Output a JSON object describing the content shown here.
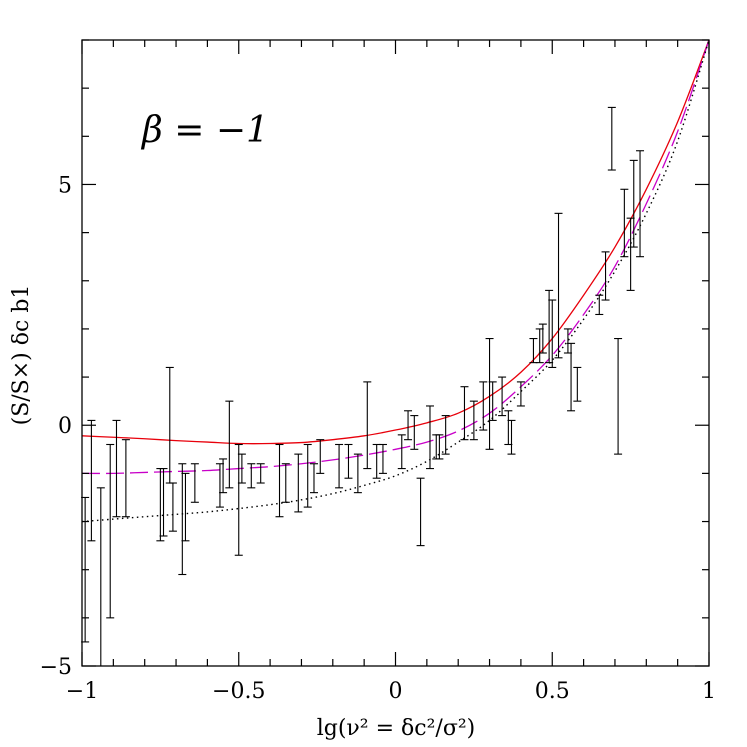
{
  "chart_data": {
    "type": "scatter",
    "title": "",
    "xlabel": "lg(ν² = δc²/σ²)",
    "ylabel": "(S/S×) δc b1",
    "annotation": "β = −1",
    "xlim": [
      -1,
      1
    ],
    "ylim": [
      -5,
      8
    ],
    "grid": false,
    "x_ticks": [
      {
        "value": -1,
        "label": "−1"
      },
      {
        "value": -0.5,
        "label": "−0.5"
      },
      {
        "value": 0,
        "label": "0"
      },
      {
        "value": 0.5,
        "label": "0.5"
      },
      {
        "value": 1,
        "label": "1"
      }
    ],
    "y_ticks": [
      {
        "value": -5,
        "label": "−5"
      },
      {
        "value": 0,
        "label": "0"
      },
      {
        "value": 5,
        "label": "5"
      }
    ],
    "x_minor_step": 0.1,
    "y_minor_step": 1,
    "errorbars": [
      {
        "x": -0.99,
        "low": -4.5,
        "high": -1.5
      },
      {
        "x": -0.97,
        "low": -2.4,
        "high": 0.1
      },
      {
        "x": -0.94,
        "low": -6.0,
        "high": -1.3
      },
      {
        "x": -0.91,
        "low": -4.0,
        "high": -0.4
      },
      {
        "x": -0.89,
        "low": -1.9,
        "high": 0.1
      },
      {
        "x": -0.86,
        "low": -1.9,
        "high": -0.3
      },
      {
        "x": -0.75,
        "low": -2.4,
        "high": -0.9
      },
      {
        "x": -0.74,
        "low": -2.3,
        "high": -0.9
      },
      {
        "x": -0.72,
        "low": -1.2,
        "high": 1.2
      },
      {
        "x": -0.71,
        "low": -2.2,
        "high": -1.2
      },
      {
        "x": -0.68,
        "low": -3.1,
        "high": -0.8
      },
      {
        "x": -0.67,
        "low": -2.4,
        "high": -1.0
      },
      {
        "x": -0.64,
        "low": -1.6,
        "high": -0.8
      },
      {
        "x": -0.56,
        "low": -1.7,
        "high": -0.8
      },
      {
        "x": -0.55,
        "low": -1.4,
        "high": -0.7
      },
      {
        "x": -0.53,
        "low": -1.3,
        "high": 0.5
      },
      {
        "x": -0.5,
        "low": -2.7,
        "high": -0.4
      },
      {
        "x": -0.49,
        "low": -1.2,
        "high": -0.6
      },
      {
        "x": -0.46,
        "low": -1.3,
        "high": -0.8
      },
      {
        "x": -0.43,
        "low": -1.2,
        "high": -0.8
      },
      {
        "x": -0.37,
        "low": -1.9,
        "high": -0.4
      },
      {
        "x": -0.35,
        "low": -1.6,
        "high": -0.8
      },
      {
        "x": -0.31,
        "low": -1.8,
        "high": -0.6
      },
      {
        "x": -0.28,
        "low": -1.7,
        "high": -0.4
      },
      {
        "x": -0.26,
        "low": -1.4,
        "high": -0.8
      },
      {
        "x": -0.24,
        "low": -1.0,
        "high": -0.3
      },
      {
        "x": -0.18,
        "low": -1.3,
        "high": -0.4
      },
      {
        "x": -0.15,
        "low": -1.1,
        "high": -0.4
      },
      {
        "x": -0.12,
        "low": -1.4,
        "high": -0.6
      },
      {
        "x": -0.09,
        "low": -0.9,
        "high": 0.9
      },
      {
        "x": -0.06,
        "low": -1.1,
        "high": -0.4
      },
      {
        "x": -0.04,
        "low": -1.0,
        "high": -0.4
      },
      {
        "x": 0.02,
        "low": -0.9,
        "high": -0.2
      },
      {
        "x": 0.04,
        "low": -0.3,
        "high": 0.3
      },
      {
        "x": 0.06,
        "low": -0.5,
        "high": 0.2
      },
      {
        "x": 0.08,
        "low": -2.5,
        "high": -1.1
      },
      {
        "x": 0.11,
        "low": -0.9,
        "high": 0.4
      },
      {
        "x": 0.13,
        "low": -0.7,
        "high": -0.2
      },
      {
        "x": 0.14,
        "low": -0.7,
        "high": -0.2
      },
      {
        "x": 0.16,
        "low": -0.6,
        "high": 0.2
      },
      {
        "x": 0.22,
        "low": -0.3,
        "high": 0.8
      },
      {
        "x": 0.25,
        "low": -0.3,
        "high": 0.5
      },
      {
        "x": 0.28,
        "low": -0.1,
        "high": 0.9
      },
      {
        "x": 0.3,
        "low": -0.5,
        "high": 1.8
      },
      {
        "x": 0.31,
        "low": 0.1,
        "high": 0.9
      },
      {
        "x": 0.34,
        "low": 0.2,
        "high": 1.0
      },
      {
        "x": 0.36,
        "low": -0.4,
        "high": 0.3
      },
      {
        "x": 0.37,
        "low": -0.6,
        "high": 0.1
      },
      {
        "x": 0.4,
        "low": 0.4,
        "high": 0.9
      },
      {
        "x": 0.44,
        "low": 1.3,
        "high": 1.8
      },
      {
        "x": 0.46,
        "low": 1.3,
        "high": 2.0
      },
      {
        "x": 0.47,
        "low": 1.5,
        "high": 2.1
      },
      {
        "x": 0.49,
        "low": 1.3,
        "high": 2.8
      },
      {
        "x": 0.5,
        "low": 1.2,
        "high": 2.6
      },
      {
        "x": 0.52,
        "low": 1.4,
        "high": 4.4
      },
      {
        "x": 0.55,
        "low": 1.5,
        "high": 2.0
      },
      {
        "x": 0.56,
        "low": 0.3,
        "high": 1.7
      },
      {
        "x": 0.58,
        "low": 0.5,
        "high": 1.2
      },
      {
        "x": 0.65,
        "low": 2.3,
        "high": 2.7
      },
      {
        "x": 0.67,
        "low": 2.6,
        "high": 3.6
      },
      {
        "x": 0.69,
        "low": 5.3,
        "high": 6.6
      },
      {
        "x": 0.71,
        "low": -0.6,
        "high": 1.8
      },
      {
        "x": 0.73,
        "low": 3.5,
        "high": 4.9
      },
      {
        "x": 0.75,
        "low": 2.8,
        "high": 4.3
      },
      {
        "x": 0.76,
        "low": 3.7,
        "high": 5.5
      },
      {
        "x": 0.78,
        "low": 3.5,
        "high": 5.7
      }
    ],
    "series": [
      {
        "style": "solid",
        "color": "#e8000b",
        "x": [
          -1,
          -0.9,
          -0.8,
          -0.7,
          -0.6,
          -0.5,
          -0.4,
          -0.3,
          -0.2,
          -0.1,
          0,
          0.1,
          0.2,
          0.3,
          0.4,
          0.5,
          0.6,
          0.7,
          0.8,
          0.9,
          1
        ],
        "y": [
          -0.22,
          -0.25,
          -0.28,
          -0.32,
          -0.35,
          -0.38,
          -0.38,
          -0.36,
          -0.3,
          -0.22,
          -0.1,
          0.05,
          0.25,
          0.6,
          1.1,
          1.8,
          2.7,
          3.7,
          4.9,
          6.3,
          8.0
        ]
      },
      {
        "style": "long-dash",
        "color": "#c800c8",
        "x": [
          -1,
          -0.9,
          -0.8,
          -0.7,
          -0.6,
          -0.5,
          -0.4,
          -0.3,
          -0.2,
          -0.1,
          0,
          0.1,
          0.2,
          0.3,
          0.4,
          0.5,
          0.6,
          0.7,
          0.8,
          0.9,
          1
        ],
        "y": [
          -1.0,
          -1.0,
          -0.98,
          -0.96,
          -0.94,
          -0.9,
          -0.86,
          -0.8,
          -0.72,
          -0.62,
          -0.5,
          -0.35,
          -0.12,
          0.25,
          0.8,
          1.45,
          2.3,
          3.3,
          4.6,
          6.1,
          8.0
        ]
      },
      {
        "style": "dotted",
        "color": "#000000",
        "x": [
          -1,
          -0.9,
          -0.8,
          -0.7,
          -0.6,
          -0.5,
          -0.4,
          -0.3,
          -0.2,
          -0.1,
          0,
          0.1,
          0.2,
          0.3,
          0.4,
          0.5,
          0.6,
          0.7,
          0.8,
          0.9,
          1
        ],
        "y": [
          -2.0,
          -1.95,
          -1.9,
          -1.85,
          -1.8,
          -1.73,
          -1.65,
          -1.55,
          -1.42,
          -1.25,
          -1.05,
          -0.75,
          -0.35,
          0.1,
          0.7,
          1.35,
          2.2,
          3.2,
          4.4,
          5.9,
          8.0
        ]
      }
    ]
  }
}
